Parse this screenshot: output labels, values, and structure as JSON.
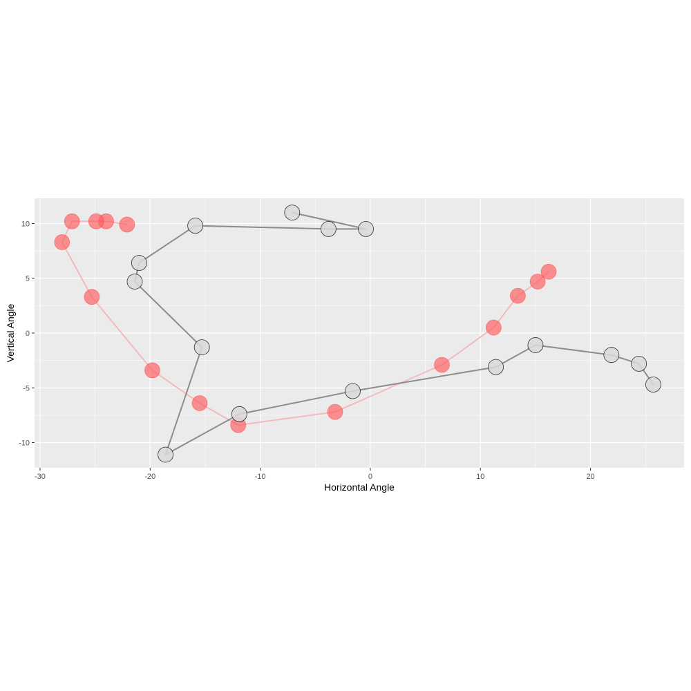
{
  "chart_data": {
    "type": "scatter",
    "xlabel": "Horizontal Angle",
    "ylabel": "Vertical Angle",
    "xlim": [
      -30.5,
      28.5
    ],
    "ylim": [
      -12.3,
      12.3
    ],
    "x_ticks": [
      -30,
      -20,
      -10,
      0,
      10,
      20
    ],
    "y_ticks": [
      -10,
      -5,
      0,
      5,
      10
    ],
    "grid": true,
    "panel_background": "#ebebeb",
    "series": [
      {
        "color": "#ff5a5f",
        "line_color": "#f4b9bd",
        "points": [
          {
            "x": -22.1,
            "y": 9.9
          },
          {
            "x": -24.0,
            "y": 10.2
          },
          {
            "x": -24.9,
            "y": 10.2
          },
          {
            "x": -27.1,
            "y": 10.2
          },
          {
            "x": -28.0,
            "y": 8.3
          },
          {
            "x": -25.3,
            "y": 3.3
          },
          {
            "x": -19.8,
            "y": -3.4
          },
          {
            "x": -15.5,
            "y": -6.4
          },
          {
            "x": -12.0,
            "y": -8.4
          },
          {
            "x": -3.2,
            "y": -7.2
          },
          {
            "x": 6.5,
            "y": -2.9
          },
          {
            "x": 11.2,
            "y": 0.5
          },
          {
            "x": 13.4,
            "y": 3.4
          },
          {
            "x": 15.2,
            "y": 4.7
          },
          {
            "x": 16.2,
            "y": 5.6
          }
        ]
      },
      {
        "color": "#d9d9d9",
        "line_color": "#8c8c8c",
        "points": [
          {
            "x": -7.1,
            "y": 11.0
          },
          {
            "x": -0.4,
            "y": 9.5
          },
          {
            "x": -3.8,
            "y": 9.5
          },
          {
            "x": -15.9,
            "y": 9.8
          },
          {
            "x": -21.0,
            "y": 6.4
          },
          {
            "x": -21.4,
            "y": 4.7
          },
          {
            "x": -15.3,
            "y": -1.3
          },
          {
            "x": -18.6,
            "y": -11.1
          },
          {
            "x": -11.9,
            "y": -7.4
          },
          {
            "x": -1.6,
            "y": -5.3
          },
          {
            "x": 11.4,
            "y": -3.1
          },
          {
            "x": 15.0,
            "y": -1.1
          },
          {
            "x": 21.9,
            "y": -2.0
          },
          {
            "x": 24.4,
            "y": -2.8
          },
          {
            "x": 25.7,
            "y": -4.7
          }
        ]
      }
    ]
  }
}
